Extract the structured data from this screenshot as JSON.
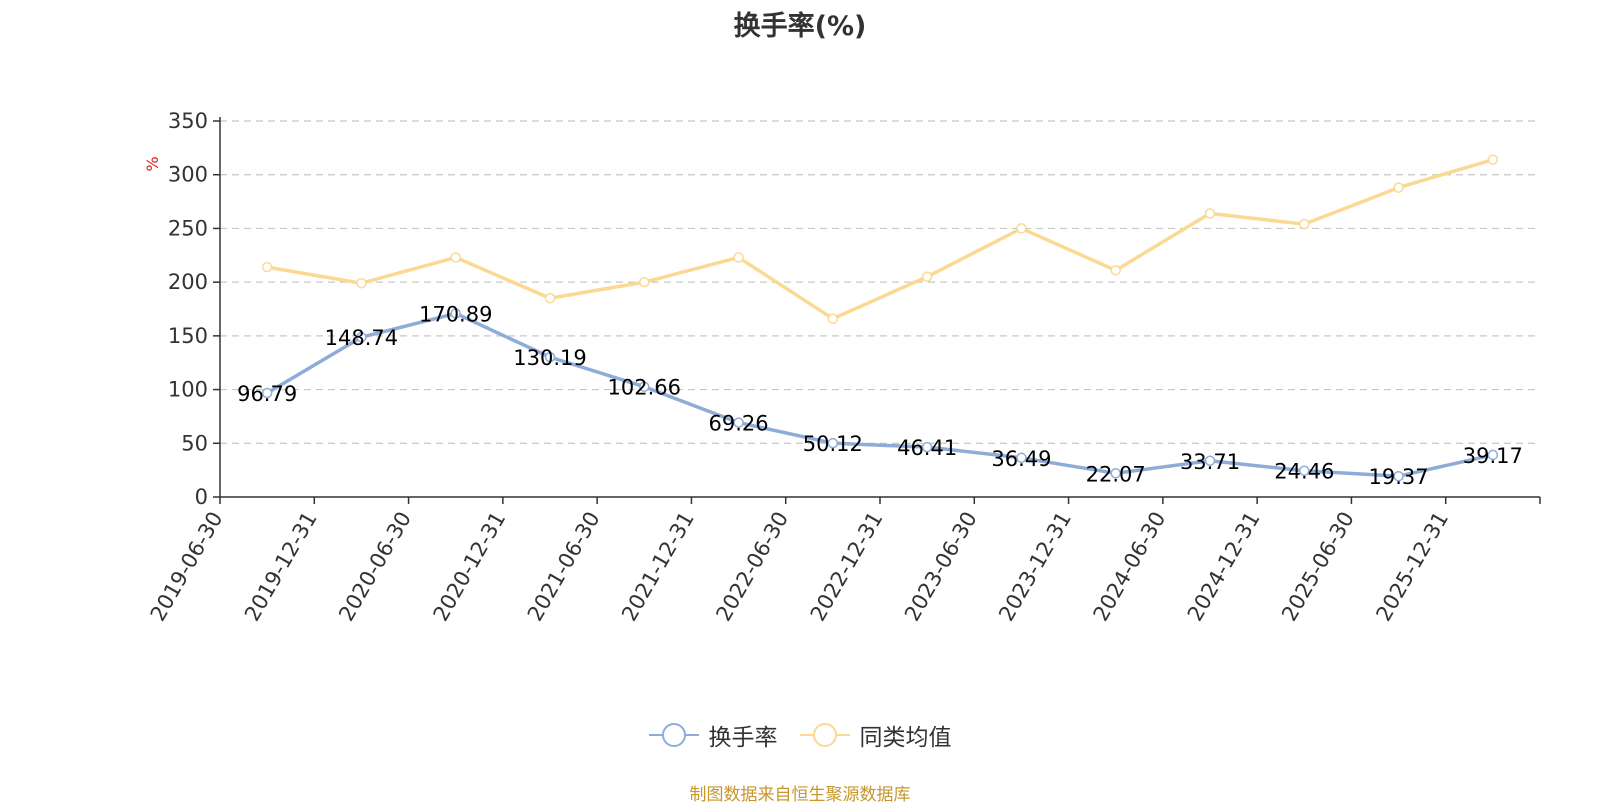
{
  "chart_data": {
    "type": "line",
    "title": "换手率(%)",
    "ylabel": "%",
    "ylim": [
      0,
      350
    ],
    "yticks": [
      0,
      50,
      100,
      150,
      200,
      250,
      300,
      350
    ],
    "categories": [
      "2019-06-30",
      "2019-12-31",
      "2020-06-30",
      "2020-12-31",
      "2021-06-30",
      "2021-12-31",
      "2022-06-30",
      "2022-12-31",
      "2023-06-30",
      "2023-12-31",
      "2024-06-30",
      "2024-12-31",
      "2025-06-30",
      "2025-12-31"
    ],
    "series": [
      {
        "name": "换手率",
        "color": "#8eacd8",
        "show_labels": true,
        "values": [
          96.79,
          148.74,
          170.89,
          130.19,
          102.66,
          69.26,
          50.12,
          46.41,
          36.49,
          22.07,
          33.71,
          24.46,
          19.37,
          39.17
        ],
        "labels": [
          "96.79",
          "148.74",
          "170.89",
          "130.19",
          "102.66",
          "69.26",
          "50.12",
          "46.41",
          "36.49",
          "22.07",
          "33.71",
          "24.46",
          "19.37",
          "39.17"
        ]
      },
      {
        "name": "同类均值",
        "color": "#fbd993",
        "show_labels": false,
        "values": [
          214,
          199,
          223,
          185,
          200,
          223,
          166,
          205,
          250,
          211,
          264,
          254,
          288,
          314
        ]
      }
    ],
    "grid": true,
    "legend_position": "bottom-center",
    "source": "制图数据来自恒生聚源数据库"
  }
}
